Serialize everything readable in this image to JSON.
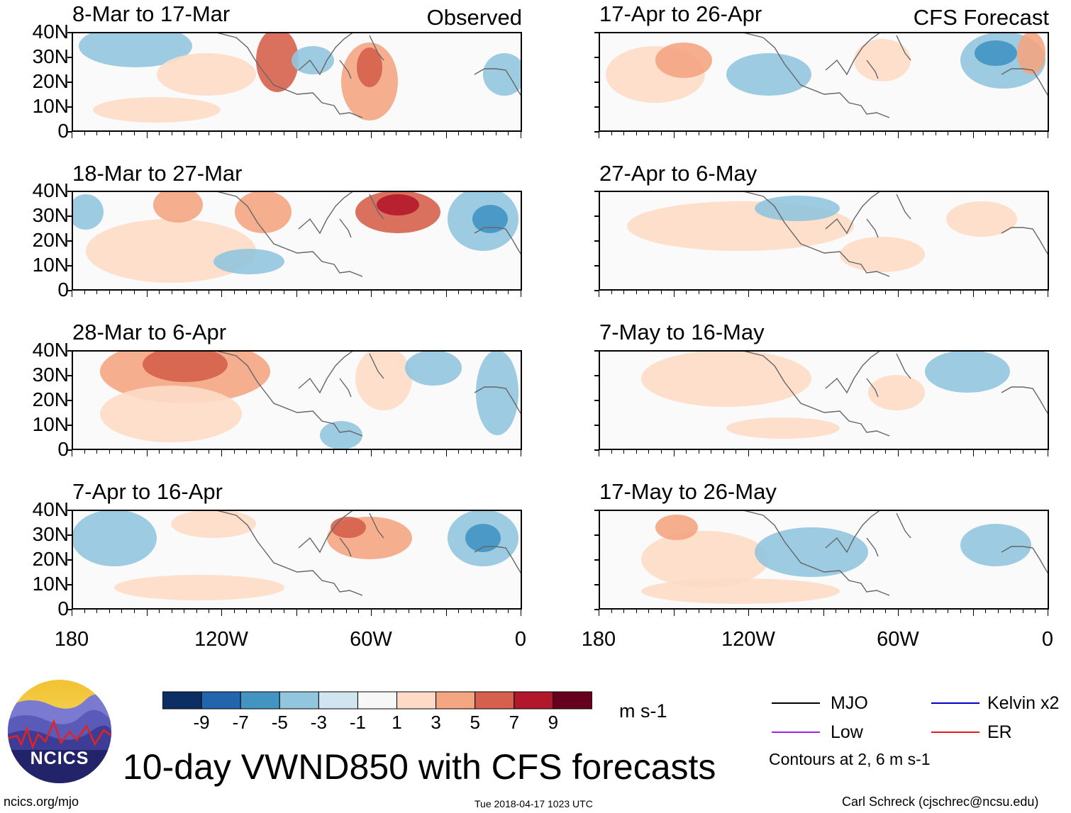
{
  "chart_data": {
    "type": "heatmap",
    "title": "10-day VWND850 with CFS forecasts",
    "variable": "VWND850",
    "units": "m s-1",
    "colorbar": {
      "tick_labels": [
        "-9",
        "-7",
        "-5",
        "-3",
        "-1",
        "1",
        "3",
        "5",
        "7",
        "9"
      ],
      "colors": [
        "#0b2f63",
        "#2166ac",
        "#4393c3",
        "#92c5de",
        "#d1e5f0",
        "#f7f7f7",
        "#fddbc7",
        "#f4a582",
        "#d6604d",
        "#b2182b",
        "#67001f"
      ]
    },
    "x_axis": {
      "tick_labels": [
        "180",
        "120W",
        "60W",
        "0"
      ],
      "range": [
        -180,
        0
      ]
    },
    "y_axis": {
      "tick_labels": [
        "40N",
        "30N",
        "20N",
        "10N",
        "0"
      ],
      "range": [
        0,
        40
      ]
    },
    "columns": [
      {
        "label": "Observed",
        "panels": [
          {
            "period": "8-Mar to 17-Mar"
          },
          {
            "period": "18-Mar to 27-Mar"
          },
          {
            "period": "28-Mar to 6-Apr"
          },
          {
            "period": "7-Apr to 16-Apr"
          }
        ]
      },
      {
        "label": "CFS Forecast",
        "panels": [
          {
            "period": "17-Apr to 26-Apr"
          },
          {
            "period": "27-Apr to 6-May"
          },
          {
            "period": "7-May to 16-May"
          },
          {
            "period": "17-May to 26-May"
          }
        ]
      }
    ],
    "legend": [
      {
        "name": "MJO",
        "color": "#000000"
      },
      {
        "name": "Kelvin x2",
        "color": "#0000cc"
      },
      {
        "name": "Low",
        "color": "#a020f0"
      },
      {
        "name": "ER",
        "color": "#e41a1c"
      }
    ],
    "contour_note": "Contours at 2, 6 m s-1"
  },
  "logo": {
    "text": "NCICS"
  },
  "footer": {
    "left": "ncics.org/mjo",
    "center": "Tue 2018-04-17 1023 UTC",
    "right": "Carl Schreck (cjschrec@ncsu.edu)"
  }
}
